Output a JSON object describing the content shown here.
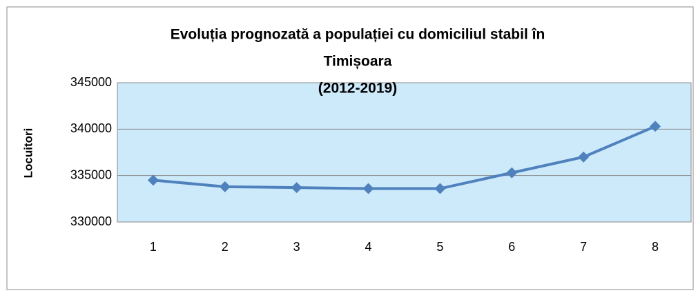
{
  "chart_data": {
    "type": "line",
    "title": [
      "Evoluția prognozată a populației cu domiciliul stabil în",
      "Timișoara",
      "(2012-2019)"
    ],
    "y_label": "Locuitori",
    "categories": [
      "1",
      "2",
      "3",
      "4",
      "5",
      "6",
      "7",
      "8"
    ],
    "series": [
      {
        "name": "Locuitori",
        "color": "#4f81bd",
        "values": [
          334500,
          333800,
          333700,
          333600,
          333600,
          335300,
          337000,
          340300
        ]
      }
    ],
    "ylim": [
      330000,
      345000
    ],
    "yticks": [
      330000,
      335000,
      340000,
      345000
    ],
    "grid": true,
    "plot_color": "#cdeafb"
  }
}
